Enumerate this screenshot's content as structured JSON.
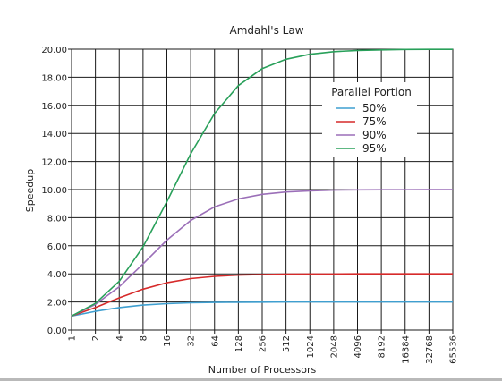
{
  "chart_data": {
    "type": "line",
    "title": "Amdahl's Law",
    "xlabel": "Number of Processors",
    "ylabel": "Speedup",
    "x": [
      "1",
      "2",
      "4",
      "8",
      "16",
      "32",
      "64",
      "128",
      "256",
      "512",
      "1024",
      "2048",
      "4096",
      "8192",
      "16384",
      "32768",
      "65536"
    ],
    "x_scale": "log2",
    "yticks": [
      "0.00",
      "2.00",
      "4.00",
      "6.00",
      "8.00",
      "10.00",
      "12.00",
      "14.00",
      "16.00",
      "18.00",
      "20.00"
    ],
    "ylim": [
      0,
      20
    ],
    "grid": true,
    "legend": {
      "title": "Parallel Portion",
      "placement": "top-right"
    },
    "series": [
      {
        "name": "50%",
        "color": "#3f9fd0",
        "values": [
          1.0,
          1.33,
          1.6,
          1.78,
          1.88,
          1.94,
          1.97,
          1.98,
          1.99,
          2.0,
          2.0,
          2.0,
          2.0,
          2.0,
          2.0,
          2.0,
          2.0
        ]
      },
      {
        "name": "75%",
        "color": "#d62a2a",
        "values": [
          1.0,
          1.6,
          2.29,
          2.91,
          3.37,
          3.66,
          3.82,
          3.91,
          3.95,
          3.98,
          3.99,
          3.99,
          4.0,
          4.0,
          4.0,
          4.0,
          4.0
        ]
      },
      {
        "name": "90%",
        "color": "#9b6fb8",
        "values": [
          1.0,
          1.82,
          3.08,
          4.71,
          6.4,
          7.8,
          8.77,
          9.34,
          9.66,
          9.83,
          9.91,
          9.96,
          9.98,
          9.99,
          9.99,
          10.0,
          10.0
        ]
      },
      {
        "name": "95%",
        "color": "#29a05a",
        "values": [
          1.0,
          1.9,
          3.48,
          5.93,
          9.14,
          12.55,
          15.42,
          17.41,
          18.62,
          19.28,
          19.64,
          19.82,
          19.91,
          19.95,
          19.98,
          19.99,
          19.99
        ]
      }
    ]
  }
}
